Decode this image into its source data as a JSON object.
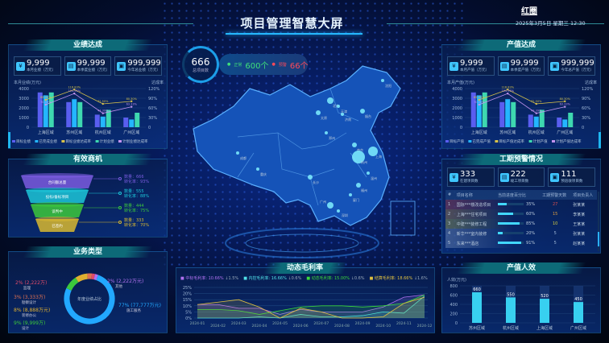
{
  "header": {
    "title": "项目管理智慧大屏",
    "logo": "红圈",
    "datetime": "2025年3月5日 星期三 12:30"
  },
  "summary": {
    "total": "666",
    "total_label": "总项目数",
    "normal_label": "正常",
    "normal": "600个",
    "warn_label": "预警",
    "warn": "66个"
  },
  "perf": {
    "title": "业绩达成",
    "kpis": [
      {
        "value": "9,999",
        "label": "本月业绩（万元）"
      },
      {
        "value": "99,999",
        "label": "本季度业绩（万元）"
      },
      {
        "value": "999,999",
        "label": "今年总业绩（万元）"
      }
    ],
    "chart": {
      "type": "bar",
      "ylabel": "本月业绩(万元)",
      "y2label": "达成率",
      "categories": [
        "上海区域",
        "苏州区域",
        "杭州区域",
        "广州区域"
      ],
      "ylim": [
        0,
        4000
      ],
      "y2lim": [
        0,
        120
      ],
      "yticks": [
        "0",
        "1000",
        "2000",
        "3000",
        "4000"
      ],
      "y2ticks": [
        "0",
        "30%",
        "60%",
        "90%",
        "120%"
      ],
      "series": [
        {
          "name": "目标业绩",
          "type": "bar",
          "values": [
            3600,
            2600,
            1300,
            1000
          ],
          "color": "#5a5ef0"
        },
        {
          "name": "已完成业绩",
          "type": "bar",
          "values": [
            3300,
            2900,
            1100,
            800
          ],
          "color": "#24b6ff"
        },
        {
          "name": "目标业绩达成率",
          "type": "line",
          "values": [
            85,
            116.83,
            72.5,
            80.3
          ],
          "labels": [
            "85.00%",
            "116.83%",
            "72.50%",
            "80.30%"
          ],
          "color": "#d8c24a"
        },
        {
          "name": "计划业绩",
          "type": "bar",
          "values": [
            3600,
            2600,
            1800,
            1500
          ],
          "color": "#3ed8b0"
        },
        {
          "name": "计划业绩达成率",
          "type": "line",
          "values": [
            70,
            104.55,
            43.39,
            63.33
          ],
          "labels": [
            "70.00%",
            "104.55%",
            "43.39%",
            "63.33%"
          ],
          "color": "#c494f0"
        }
      ]
    }
  },
  "output": {
    "title": "产值达成",
    "kpis": [
      {
        "value": "9,999",
        "label": "本月产值（万元）"
      },
      {
        "value": "99,999",
        "label": "本季度产值（万元）"
      },
      {
        "value": "999,999",
        "label": "今年总产值（万元）"
      }
    ],
    "chart": {
      "type": "bar",
      "ylabel": "本月产值(万元)",
      "y2label": "达成率",
      "categories": [
        "上海区域",
        "苏州区域",
        "杭州区域",
        "广州区域"
      ],
      "ylim": [
        0,
        4000
      ],
      "y2lim": [
        0,
        120
      ],
      "yticks": [
        "0",
        "1000",
        "2000",
        "3000",
        "4000"
      ],
      "y2ticks": [
        "0",
        "30%",
        "60%",
        "90%",
        "120%"
      ],
      "series": [
        {
          "name": "目标产值",
          "type": "bar",
          "values": [
            3600,
            2600,
            1300,
            1000
          ],
          "color": "#5a5ef0"
        },
        {
          "name": "已完成产值",
          "type": "bar",
          "values": [
            3300,
            2900,
            1100,
            800
          ],
          "color": "#24b6ff"
        },
        {
          "name": "目标产值达成率",
          "type": "line",
          "values": [
            85,
            116.83,
            72.5,
            80.3
          ],
          "labels": [
            "85.00%",
            "116.83%",
            "72.50%",
            "80.30%"
          ],
          "color": "#d8c24a"
        },
        {
          "name": "计划产值",
          "type": "bar",
          "values": [
            3600,
            2600,
            1800,
            1500
          ],
          "color": "#3ed8b0"
        },
        {
          "name": "计划产值达成率",
          "type": "line",
          "values": [
            70,
            104.55,
            43.39,
            63.33
          ],
          "labels": [
            "70.00%",
            "104.55%",
            "43.39%",
            "63.33%"
          ],
          "color": "#c494f0"
        }
      ]
    }
  },
  "funnel": {
    "title": "有效商机",
    "stages": [
      {
        "name": "合同额总量",
        "count": "数量：666",
        "rate": "转化率：93%",
        "color": "#7a5ce0"
      },
      {
        "name": "投标/备标项目",
        "count": "数量：555",
        "rate": "转化率：88%",
        "color": "#1cc6d8"
      },
      {
        "name": "谈判中",
        "count": "数量：444",
        "rate": "转化率：75%",
        "color": "#3cc83c"
      },
      {
        "name": "已签约",
        "count": "数量：333",
        "rate": "转化率：70%",
        "color": "#d8b830"
      }
    ]
  },
  "business": {
    "title": "业务类型",
    "center": "年度业绩占比",
    "slices": [
      {
        "pct": 77,
        "label": "77% (77,777万元)",
        "name": "施工服务",
        "color": "#22a8ff"
      },
      {
        "pct": 9,
        "label": "9% (9,999万)",
        "name": "设计",
        "color": "#3cc83c"
      },
      {
        "pct": 8,
        "label": "8% (8,888万元)",
        "name": "装修办公",
        "color": "#e0b030"
      },
      {
        "pct": 3,
        "label": "3% (3,333万)",
        "name": "勘察设计",
        "color": "#e07050"
      },
      {
        "pct": 2,
        "label": "2% (2,222万)",
        "name": "监理",
        "color": "#e04a6a"
      },
      {
        "pct": 2,
        "label": "2% (2,222万元)",
        "name": "其他",
        "color": "#b070f0"
      }
    ]
  },
  "warning": {
    "title": "工期预警情况",
    "kpis": [
      {
        "value": "333",
        "label": "在建项目数"
      },
      {
        "value": "222",
        "label": "竣工项目数"
      },
      {
        "value": "111",
        "label": "预验收项目数"
      }
    ],
    "headers": [
      "#",
      "项目名称",
      "当前进度百分比",
      "工期预警天数",
      "项目负责人"
    ],
    "rows": [
      {
        "no": "1",
        "name": "国际***楼改造项目",
        "progress": 35,
        "progress_label": "35%",
        "days": "27",
        "owner": "张某某",
        "color": "#e05050"
      },
      {
        "no": "2",
        "name": "上海***住宅项目",
        "progress": 60,
        "progress_label": "60%",
        "days": "15",
        "owner": "李某某",
        "color": "#e0a040"
      },
      {
        "no": "3",
        "name": "中建***装修工程",
        "progress": 85,
        "progress_label": "85%",
        "days": "10",
        "owner": "王某某",
        "color": "#d8d040"
      },
      {
        "no": "4",
        "name": "新华***室内装修",
        "progress": 20,
        "progress_label": "20%",
        "days": "5",
        "owner": "张某某",
        "color": "#9fb8d8"
      },
      {
        "no": "5",
        "name": "东来***酒店",
        "progress": 91,
        "progress_label": "91%",
        "days": "5",
        "owner": "赵某某",
        "color": "#9fb8d8"
      }
    ]
  },
  "efficiency": {
    "title": "产值人效",
    "chart_data": {
      "type": "bar",
      "ylabel": "人效(万元)",
      "categories": [
        "苏州区域",
        "杭州区域",
        "上海区域",
        "广州区域"
      ],
      "values": [
        660,
        550,
        520,
        450
      ],
      "ylim": [
        0,
        800
      ],
      "yticks": [
        "0",
        "200",
        "400",
        "600",
        "800"
      ]
    }
  },
  "margin": {
    "title": "动态毛利率",
    "legend": [
      {
        "name": "中标毛利率:",
        "value": "10.66%",
        "delta": "↓1.5%",
        "color": "#b070f0"
      },
      {
        "name": "内控毛利率:",
        "value": "16.66%",
        "delta": "↓0.6%",
        "color": "#50e0e8"
      },
      {
        "name": "动态毛利率:",
        "value": "15.00%",
        "delta": "↓0.6%",
        "color": "#3cd83c"
      },
      {
        "name": "结算毛利率:",
        "value": "18.66%",
        "delta": "↓1.6%",
        "color": "#e0c040"
      }
    ],
    "chart_data": {
      "type": "area",
      "x": [
        "2024-01",
        "2024-02",
        "2024-03",
        "2024-04",
        "2024-05",
        "2024-06",
        "2024-07",
        "2024-08",
        "2024-09",
        "2024-10",
        "2024-11",
        "2024-12"
      ],
      "ylim": [
        0,
        25
      ],
      "yticks": [
        "0%",
        "5%",
        "10%",
        "15%",
        "20%",
        "25%"
      ],
      "series": [
        {
          "name": "中标毛利率",
          "values": [
            11,
            11,
            8,
            8,
            3,
            7,
            5,
            5,
            5,
            9,
            17,
            19
          ],
          "color": "#b070f0"
        },
        {
          "name": "内控毛利率",
          "values": [
            0,
            0,
            0,
            1,
            0,
            3,
            1,
            1,
            2,
            5,
            4,
            18
          ],
          "color": "#50e0e8"
        },
        {
          "name": "动态毛利率",
          "values": [
            7,
            7,
            6,
            3,
            6,
            9,
            10,
            10,
            9,
            10,
            12,
            19
          ],
          "color": "#3cd83c"
        },
        {
          "name": "结算毛利率",
          "values": [
            11,
            13,
            15,
            9,
            0,
            8,
            5,
            0,
            0,
            1,
            12,
            17
          ],
          "color": "#e0c040"
        }
      ]
    }
  },
  "map": {
    "cities": [
      "沈阳",
      "北京",
      "天津",
      "太原",
      "济南",
      "烟台",
      "郑州",
      "南京",
      "上海",
      "杭州",
      "温州",
      "长沙",
      "福州",
      "厦门",
      "广州",
      "深圳",
      "成都",
      "重庆"
    ]
  }
}
